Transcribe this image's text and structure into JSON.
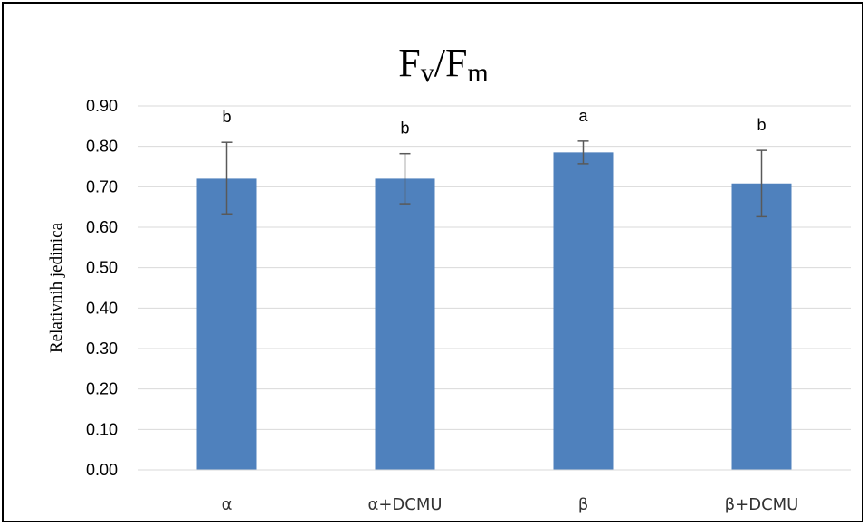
{
  "chart_data": {
    "type": "bar",
    "title": {
      "main": "F",
      "sub1": "v",
      "sep": "/F",
      "sub2": "m"
    },
    "xlabel": "",
    "ylabel": "Relativnih jedinica",
    "ylim": [
      0,
      0.9
    ],
    "yticks": [
      "0.00",
      "0.10",
      "0.20",
      "0.30",
      "0.40",
      "0.50",
      "0.60",
      "0.70",
      "0.80",
      "0.90"
    ],
    "grid": true,
    "categories": [
      "α",
      "α+DCMU",
      "β",
      "β+DCMU"
    ],
    "values": [
      0.72,
      0.72,
      0.785,
      0.708
    ],
    "error_low": [
      0.633,
      0.658,
      0.757,
      0.626
    ],
    "error_high": [
      0.81,
      0.782,
      0.813,
      0.79
    ],
    "significance": [
      "b",
      "b",
      "a",
      "b"
    ],
    "bar_color": "#4f81bd",
    "grid_color": "#d9d9d9",
    "error_color": "#595959"
  }
}
